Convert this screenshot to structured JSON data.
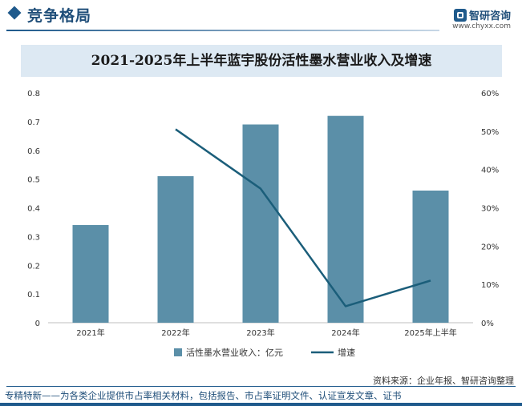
{
  "header": {
    "title": "竞争格局",
    "logo_text": "智研咨询",
    "logo_url": "www.chyxx.com"
  },
  "chart_data": {
    "type": "bar",
    "title": "2021-2025年上半年蓝宇股份活性墨水营业收入及增速",
    "categories": [
      "2021年",
      "2022年",
      "2023年",
      "2024年",
      "2025年上半年"
    ],
    "series": [
      {
        "name": "活性墨水营业收入：亿元",
        "type": "bar",
        "axis": "left",
        "color": "#5b8fa8",
        "values": [
          0.34,
          0.51,
          0.69,
          0.72,
          0.46
        ]
      },
      {
        "name": "增速",
        "type": "line",
        "axis": "right",
        "color": "#1b5e7a",
        "values": [
          null,
          50.5,
          35,
          4.3,
          11
        ]
      }
    ],
    "y_left": {
      "range": [
        0,
        0.8
      ],
      "ticks": [
        "0",
        "0.1",
        "0.2",
        "0.3",
        "0.4",
        "0.5",
        "0.6",
        "0.7",
        "0.8"
      ]
    },
    "y_right": {
      "range": [
        0,
        60
      ],
      "ticks": [
        "0%",
        "10%",
        "20%",
        "30%",
        "40%",
        "50%",
        "60%"
      ]
    },
    "legend": "bottom-center",
    "grid": false
  },
  "source": "资料来源：企业年报、智研咨询整理",
  "footer": "专精特新——为各类企业提供市占率相关材料，包括报告、市占率证明文件、认证宣发文章、证书",
  "colors": {
    "accent": "#1f5a8c",
    "panel": "#dde9f3"
  }
}
